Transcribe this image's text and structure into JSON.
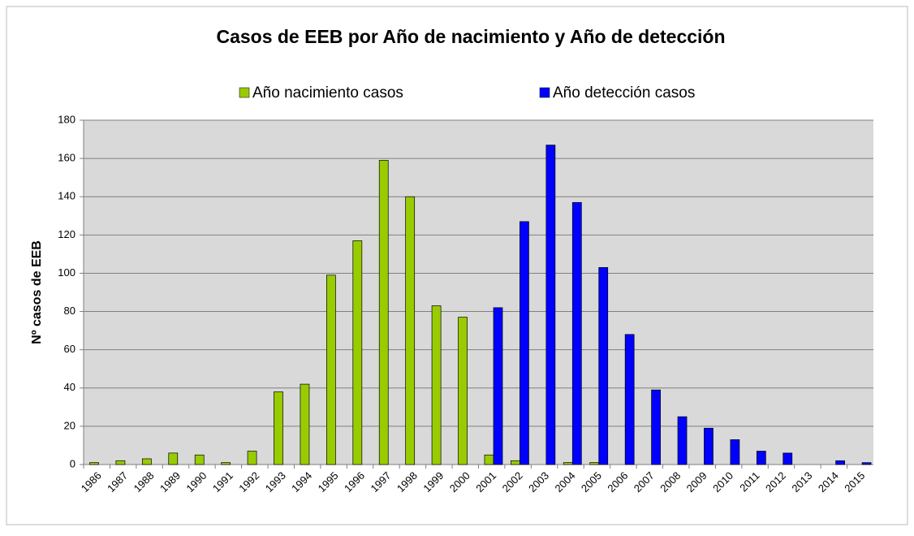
{
  "chart_data": {
    "type": "bar",
    "title": "Casos de EEB por Año de nacimiento y Año de detección",
    "y_label": "Nº casos de EEB",
    "categories": [
      "1986",
      "1987",
      "1988",
      "1989",
      "1990",
      "1991",
      "1992",
      "1993",
      "1994",
      "1995",
      "1996",
      "1997",
      "1998",
      "1999",
      "2000",
      "2001",
      "2002",
      "2003",
      "2004",
      "2005",
      "2006",
      "2007",
      "2008",
      "2009",
      "2010",
      "2011",
      "2012",
      "2013",
      "2014",
      "2015"
    ],
    "series": [
      {
        "name": "Año nacimiento casos",
        "color": "#99cc00",
        "values": [
          1,
          2,
          3,
          6,
          5,
          1,
          7,
          38,
          42,
          99,
          117,
          159,
          140,
          83,
          77,
          5,
          2,
          0,
          1,
          1,
          0,
          0,
          0,
          0,
          0,
          0,
          0,
          0,
          0,
          0
        ]
      },
      {
        "name": "Año detección casos",
        "color": "#0000ff",
        "values": [
          0,
          0,
          0,
          0,
          0,
          0,
          0,
          0,
          0,
          0,
          0,
          0,
          0,
          0,
          0,
          82,
          127,
          167,
          137,
          103,
          68,
          39,
          25,
          19,
          13,
          7,
          6,
          0,
          2,
          1
        ]
      }
    ],
    "ylim": [
      0,
      180
    ],
    "yticks": [
      0,
      20,
      40,
      60,
      80,
      100,
      120,
      140,
      160,
      180
    ],
    "grid": true,
    "legend": "top"
  }
}
